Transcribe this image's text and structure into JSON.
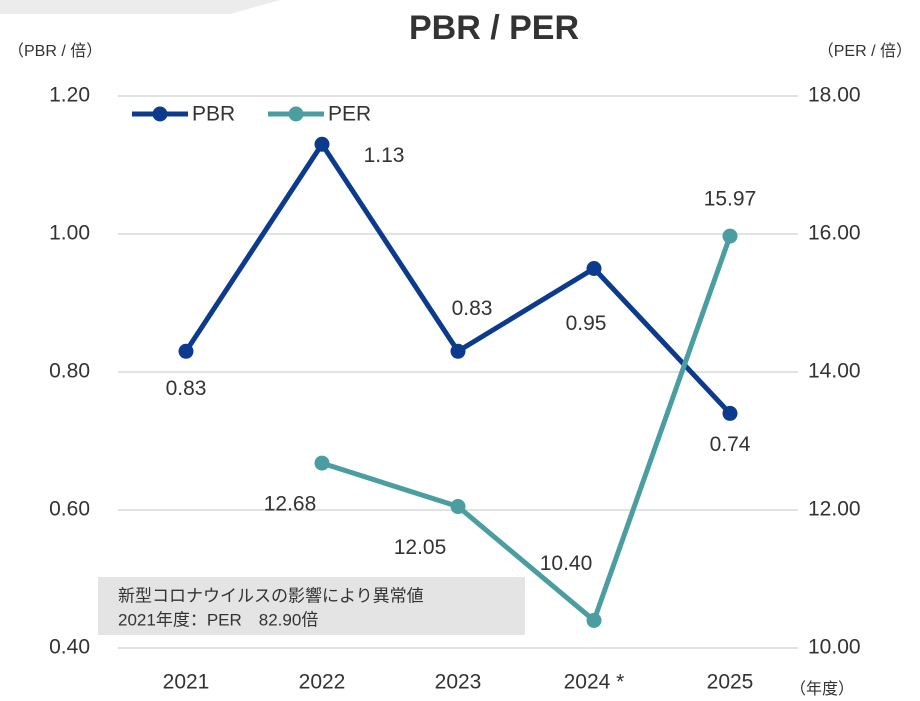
{
  "chart_data": {
    "type": "line",
    "title": "PBR / PER",
    "y_label": "（PBR / 倍）",
    "y2_label": "（PER / 倍）",
    "x_label": "（年度）",
    "categories": [
      "2021",
      "2022",
      "2023",
      "2024 *",
      "2025"
    ],
    "series": [
      {
        "name": "PBR",
        "color": "#0c3b8e",
        "values": [
          0.83,
          1.13,
          0.83,
          0.95,
          0.74
        ]
      },
      {
        "name": "PER",
        "color": "#4b9ea0",
        "axis": "y2",
        "values": [
          null,
          12.68,
          12.05,
          10.4,
          15.97
        ],
        "value_labels": [
          null,
          "12.68",
          "12.05",
          "10.40",
          "15.97"
        ]
      }
    ],
    "ylim": [
      0.4,
      1.2
    ],
    "yticks": [
      {
        "value": 0.4,
        "label": "0.40"
      },
      {
        "value": 0.6,
        "label": "0.60"
      },
      {
        "value": 0.8,
        "label": "0.80"
      },
      {
        "value": 1.0,
        "label": "1.00"
      },
      {
        "value": 1.2,
        "label": "1.20"
      }
    ],
    "y2lim": [
      10,
      18
    ],
    "y2ticks": [
      {
        "value": 10,
        "label": "10.00"
      },
      {
        "value": 12,
        "label": "12.00"
      },
      {
        "value": 14,
        "label": "14.00"
      },
      {
        "value": 16,
        "label": "16.00"
      },
      {
        "value": 18,
        "label": "18.00"
      }
    ],
    "grid": true,
    "legend": "top-left",
    "annotation": [
      "新型コロナウイルスの影響により異常値",
      "2021年度：PER　82.90倍"
    ]
  }
}
